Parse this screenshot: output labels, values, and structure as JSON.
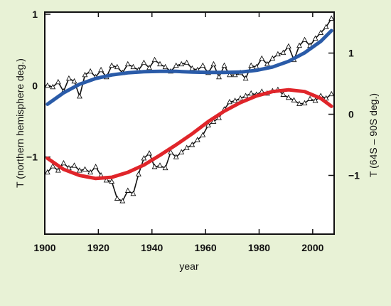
{
  "chart_data": {
    "type": "line",
    "title": "",
    "xlabel": "year",
    "ylabel_left": "T (northern hemisphere deg.)",
    "ylabel_right": "T (64S – 90S deg.)",
    "xlim": [
      1900,
      2008
    ],
    "x_ticks": [
      1900,
      1920,
      1940,
      1960,
      1980,
      2000
    ],
    "x_tick_labels": [
      "1900",
      "1920",
      "1940",
      "1960",
      "1980",
      "2000"
    ],
    "left_axis": {
      "ylim": [
        -2.08,
        1.03
      ],
      "ticks": [
        1,
        0,
        -1
      ],
      "tick_labels": [
        "1",
        "0",
        "−1"
      ]
    },
    "right_axis": {
      "ylim": [
        -1.96,
        1.67
      ],
      "ticks": [
        1,
        0,
        -1
      ],
      "tick_labels": [
        "1",
        "0",
        "−1"
      ]
    },
    "grid": false,
    "series": [
      {
        "axis": "left",
        "style": "observed",
        "color": "#111111",
        "x": [
          1901,
          1903,
          1905,
          1907,
          1909,
          1911,
          1913,
          1915,
          1917,
          1919,
          1921,
          1923,
          1925,
          1927,
          1929,
          1931,
          1933,
          1935,
          1937,
          1939,
          1941,
          1943,
          1945,
          1947,
          1949,
          1951,
          1953,
          1955,
          1957,
          1959,
          1961,
          1963,
          1965,
          1967,
          1969,
          1971,
          1973,
          1975,
          1977,
          1979,
          1981,
          1983,
          1985,
          1987,
          1989,
          1991,
          1993,
          1995,
          1997,
          1999,
          2001,
          2003,
          2005,
          2007
        ],
        "y": [
          0.0,
          -0.02,
          0.05,
          -0.08,
          0.1,
          0.06,
          -0.15,
          0.15,
          0.2,
          0.12,
          0.22,
          0.12,
          0.28,
          0.26,
          0.18,
          0.3,
          0.26,
          0.22,
          0.32,
          0.25,
          0.36,
          0.3,
          0.26,
          0.2,
          0.28,
          0.3,
          0.32,
          0.24,
          0.22,
          0.28,
          0.18,
          0.3,
          0.12,
          0.28,
          0.15,
          0.15,
          0.18,
          0.1,
          0.28,
          0.26,
          0.38,
          0.3,
          0.38,
          0.44,
          0.46,
          0.55,
          0.36,
          0.56,
          0.64,
          0.56,
          0.66,
          0.74,
          0.82,
          0.94
        ]
      },
      {
        "axis": "left",
        "style": "fit",
        "color": "#2a5ba8",
        "x": [
          1901,
          1907,
          1913,
          1919,
          1925,
          1931,
          1937,
          1943,
          1949,
          1955,
          1961,
          1967,
          1973,
          1979,
          1985,
          1991,
          1997,
          2003,
          2007
        ],
        "y": [
          -0.26,
          -0.1,
          0.02,
          0.1,
          0.15,
          0.18,
          0.195,
          0.2,
          0.2,
          0.19,
          0.185,
          0.185,
          0.19,
          0.215,
          0.26,
          0.34,
          0.46,
          0.62,
          0.77
        ]
      },
      {
        "axis": "right",
        "style": "observed",
        "color": "#111111",
        "x": [
          1901,
          1903,
          1905,
          1907,
          1909,
          1911,
          1913,
          1915,
          1917,
          1919,
          1921,
          1923,
          1925,
          1927,
          1929,
          1931,
          1933,
          1935,
          1937,
          1939,
          1941,
          1943,
          1945,
          1947,
          1949,
          1951,
          1953,
          1955,
          1957,
          1959,
          1961,
          1963,
          1965,
          1967,
          1969,
          1971,
          1973,
          1975,
          1977,
          1979,
          1981,
          1983,
          1985,
          1987,
          1989,
          1991,
          1993,
          1995,
          1997,
          1999,
          2001,
          2003,
          2005,
          2007
        ],
        "y": [
          -0.95,
          -0.85,
          -0.92,
          -0.8,
          -0.88,
          -0.84,
          -0.92,
          -0.9,
          -0.95,
          -0.86,
          -1.0,
          -1.08,
          -1.1,
          -1.38,
          -1.42,
          -1.25,
          -1.3,
          -0.98,
          -0.72,
          -0.64,
          -0.86,
          -0.84,
          -0.88,
          -0.62,
          -0.7,
          -0.62,
          -0.55,
          -0.5,
          -0.42,
          -0.34,
          -0.18,
          -0.12,
          -0.06,
          0.08,
          0.2,
          0.22,
          0.26,
          0.3,
          0.34,
          0.32,
          0.37,
          0.34,
          0.38,
          0.4,
          0.32,
          0.27,
          0.23,
          0.17,
          0.18,
          0.25,
          0.22,
          0.3,
          0.26,
          0.33
        ]
      },
      {
        "axis": "right",
        "style": "fit",
        "color": "#e0252a",
        "x": [
          1901,
          1907,
          1913,
          1919,
          1925,
          1931,
          1937,
          1943,
          1949,
          1955,
          1961,
          1967,
          1973,
          1979,
          1985,
          1991,
          1997,
          2003,
          2007
        ],
        "y": [
          -0.72,
          -0.9,
          -1.0,
          -1.05,
          -1.03,
          -0.95,
          -0.83,
          -0.67,
          -0.5,
          -0.32,
          -0.12,
          0.05,
          0.19,
          0.3,
          0.37,
          0.4,
          0.37,
          0.26,
          0.13
        ]
      }
    ]
  }
}
